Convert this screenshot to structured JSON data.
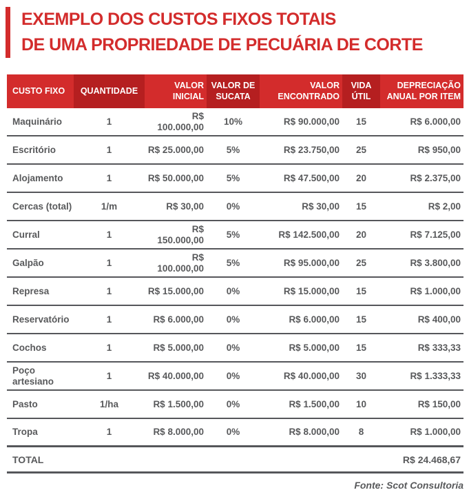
{
  "title": {
    "line1": "EXEMPLO DOS CUSTOS FIXOS TOTAIS",
    "line2": "DE UMA PROPRIEDADE DE PECUÁRIA DE CORTE"
  },
  "colors": {
    "accent_red": "#d32c2c",
    "dark_red": "#b51f20",
    "text_gray": "#58595b",
    "separator_gray": "#55565a"
  },
  "table": {
    "columns": [
      {
        "key": "custo-fixo",
        "label": "CUSTO FIXO"
      },
      {
        "key": "quantidade",
        "label": "QUANTIDADE"
      },
      {
        "key": "valor-inicial",
        "label": "VALOR INICIAL"
      },
      {
        "key": "valor-de-sucata",
        "label": "VALOR DE SUCATA"
      },
      {
        "key": "valor-encontrado",
        "label": "VALOR ENCONTRADO"
      },
      {
        "key": "vida-util",
        "label": "VIDA ÚTIL"
      },
      {
        "key": "depreciacao-anual-por-item",
        "label": "DEPRECIAÇÃO ANUAL POR ITEM"
      }
    ],
    "rows": [
      [
        "Maquinário",
        "1",
        "R$ 100.000,00",
        "10%",
        "R$ 90.000,00",
        "15",
        "R$ 6.000,00"
      ],
      [
        "Escritório",
        "1",
        "R$ 25.000,00",
        "5%",
        "R$ 23.750,00",
        "25",
        "R$ 950,00"
      ],
      [
        "Alojamento",
        "1",
        "R$ 50.000,00",
        "5%",
        "R$ 47.500,00",
        "20",
        "R$ 2.375,00"
      ],
      [
        "Cercas (total)",
        "1/m",
        "R$ 30,00",
        "0%",
        "R$ 30,00",
        "15",
        "R$ 2,00"
      ],
      [
        "Curral",
        "1",
        "R$ 150.000,00",
        "5%",
        "R$ 142.500,00",
        "20",
        "R$ 7.125,00"
      ],
      [
        "Galpão",
        "1",
        "R$ 100.000,00",
        "5%",
        "R$ 95.000,00",
        "25",
        "R$ 3.800,00"
      ],
      [
        "Represa",
        "1",
        "R$ 15.000,00",
        "0%",
        "R$ 15.000,00",
        "15",
        "R$ 1.000,00"
      ],
      [
        "Reservatório",
        "1",
        "R$ 6.000,00",
        "0%",
        "R$ 6.000,00",
        "15",
        "R$ 400,00"
      ],
      [
        "Cochos",
        "1",
        "R$ 5.000,00",
        "0%",
        "R$ 5.000,00",
        "15",
        "R$ 333,33"
      ],
      [
        "Poço artesiano",
        "1",
        "R$ 40.000,00",
        "0%",
        "R$ 40.000,00",
        "30",
        "R$ 1.333,33"
      ],
      [
        "Pasto",
        "1/ha",
        "R$ 1.500,00",
        "0%",
        "R$ 1.500,00",
        "10",
        "R$ 150,00"
      ],
      [
        "Tropa",
        "1",
        "R$ 8.000,00",
        "0%",
        "R$ 8.000,00",
        "8",
        "R$ 1.000,00"
      ]
    ],
    "total_label": "TOTAL",
    "total_value": "R$ 24.468,67"
  },
  "footer": {
    "source": "Fonte: Scot Consultoria"
  },
  "chart_data": {
    "type": "table",
    "title": "EXEMPLO DOS CUSTOS FIXOS TOTAIS DE UMA PROPRIEDADE DE PECUÁRIA DE CORTE",
    "columns": [
      "CUSTO FIXO",
      "QUANTIDADE",
      "VALOR INICIAL",
      "VALOR DE SUCATA",
      "VALOR ENCONTRADO",
      "VIDA ÚTIL",
      "DEPRECIAÇÃO ANUAL POR ITEM"
    ],
    "rows": [
      [
        "Maquinário",
        "1",
        "R$ 100.000,00",
        "10%",
        "R$ 90.000,00",
        "15",
        "R$ 6.000,00"
      ],
      [
        "Escritório",
        "1",
        "R$ 25.000,00",
        "5%",
        "R$ 23.750,00",
        "25",
        "R$ 950,00"
      ],
      [
        "Alojamento",
        "1",
        "R$ 50.000,00",
        "5%",
        "R$ 47.500,00",
        "20",
        "R$ 2.375,00"
      ],
      [
        "Cercas (total)",
        "1/m",
        "R$ 30,00",
        "0%",
        "R$ 30,00",
        "15",
        "R$ 2,00"
      ],
      [
        "Curral",
        "1",
        "R$ 150.000,00",
        "5%",
        "R$ 142.500,00",
        "20",
        "R$ 7.125,00"
      ],
      [
        "Galpão",
        "1",
        "R$ 100.000,00",
        "5%",
        "R$ 95.000,00",
        "25",
        "R$ 3.800,00"
      ],
      [
        "Represa",
        "1",
        "R$ 15.000,00",
        "0%",
        "R$ 15.000,00",
        "15",
        "R$ 1.000,00"
      ],
      [
        "Reservatório",
        "1",
        "R$ 6.000,00",
        "0%",
        "R$ 6.000,00",
        "15",
        "R$ 400,00"
      ],
      [
        "Cochos",
        "1",
        "R$ 5.000,00",
        "0%",
        "R$ 5.000,00",
        "15",
        "R$ 333,33"
      ],
      [
        "Poço artesiano",
        "1",
        "R$ 40.000,00",
        "0%",
        "R$ 40.000,00",
        "30",
        "R$ 1.333,33"
      ],
      [
        "Pasto",
        "1/ha",
        "R$ 1.500,00",
        "0%",
        "R$ 1.500,00",
        "10",
        "R$ 150,00"
      ],
      [
        "Tropa",
        "1",
        "R$ 8.000,00",
        "0%",
        "R$ 8.000,00",
        "8",
        "R$ 1.000,00"
      ]
    ],
    "total": [
      "TOTAL",
      "",
      "",
      "",
      "",
      "",
      "R$ 24.468,67"
    ],
    "source": "Fonte: Scot Consultoria"
  }
}
